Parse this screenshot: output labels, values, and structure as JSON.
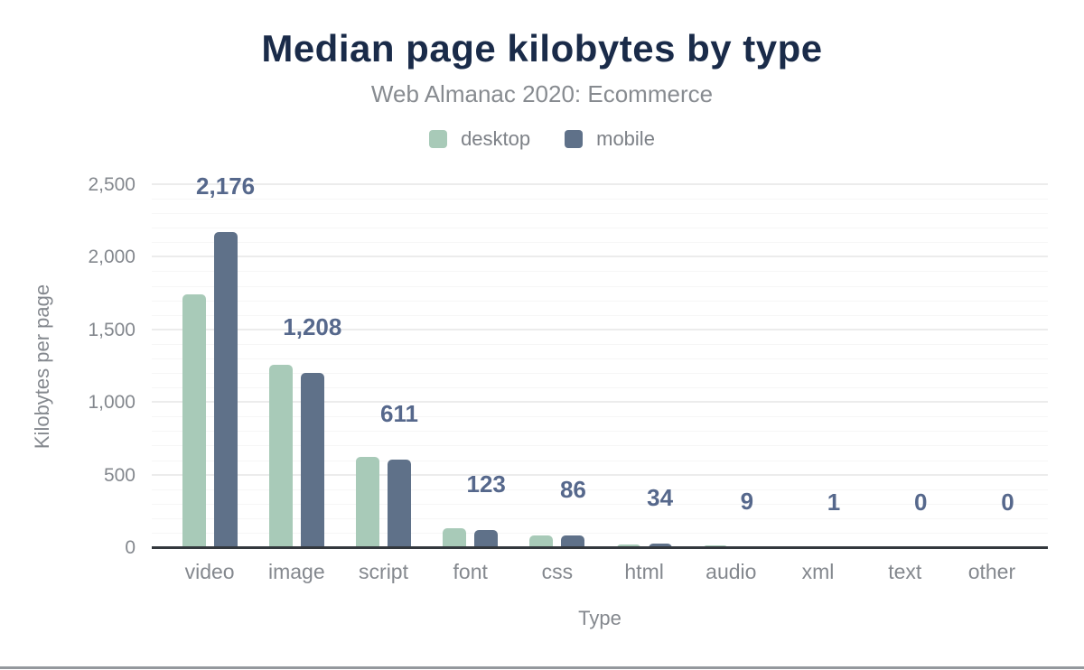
{
  "chart_data": {
    "type": "bar",
    "title": "Median page kilobytes by type",
    "subtitle": "Web Almanac 2020: Ecommerce",
    "xlabel": "Type",
    "ylabel": "Kilobytes per page",
    "categories": [
      "video",
      "image",
      "script",
      "font",
      "css",
      "html",
      "audio",
      "xml",
      "text",
      "other"
    ],
    "series": [
      {
        "name": "desktop",
        "color": "#a8cab8",
        "values": [
          1750,
          1265,
          630,
          137,
          85,
          25,
          18,
          1,
          0,
          0
        ]
      },
      {
        "name": "mobile",
        "color": "#5f7189",
        "values": [
          2176,
          1208,
          611,
          123,
          86,
          34,
          9,
          1,
          0,
          0
        ]
      }
    ],
    "bar_labels": [
      "2,176",
      "1,208",
      "611",
      "123",
      "86",
      "34",
      "9",
      "1",
      "0",
      "0"
    ],
    "bar_labels_series": "mobile",
    "ylim": [
      0,
      2500
    ],
    "ytick_values": [
      0,
      500,
      1000,
      1500,
      2000,
      2500
    ],
    "ytick_labels": [
      "0",
      "500",
      "1,000",
      "1,500",
      "2,000",
      "2,500"
    ],
    "ytick_step_minor": 100,
    "ytick_step_major": 500,
    "grid": "horizontal",
    "legend_position": "top"
  },
  "colors": {
    "title": "#1a2b49",
    "subtitle": "#878b90",
    "axis_text": "#84888e",
    "bar_label": "#56688c",
    "axis_line": "#33383d",
    "grid_minor": "#f6f6f6",
    "grid_major": "#ececec",
    "bottom_rule": "#94989d",
    "background": "#ffffff"
  }
}
